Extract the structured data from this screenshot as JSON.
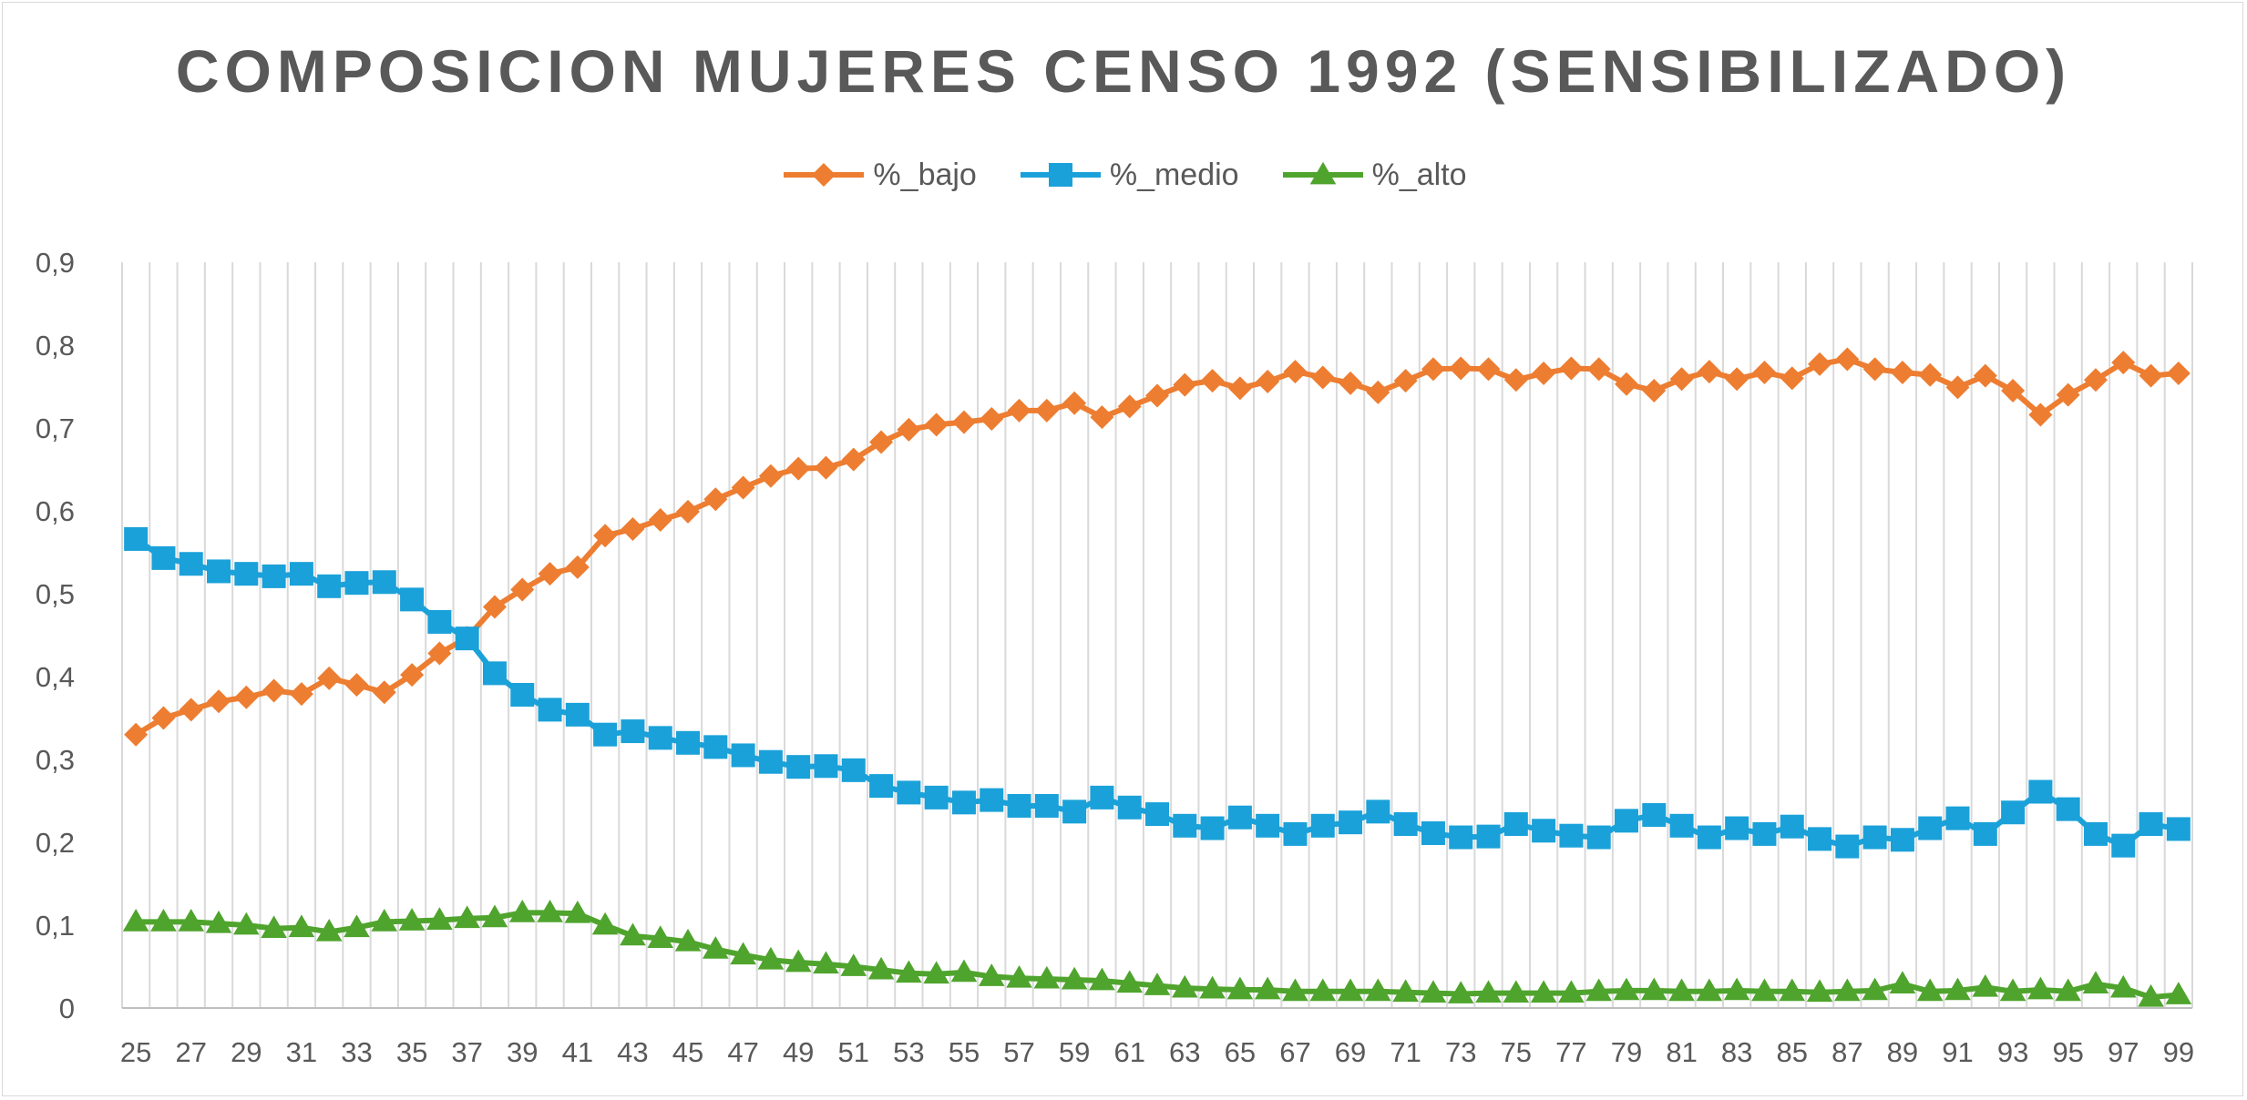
{
  "chart_data": {
    "type": "line",
    "title": "COMPOSICION MUJERES CENSO 1992 (SENSIBILIZADO)",
    "xlabel": "",
    "ylabel": "",
    "x": [
      25,
      26,
      27,
      28,
      29,
      30,
      31,
      32,
      33,
      34,
      35,
      36,
      37,
      38,
      39,
      40,
      41,
      42,
      43,
      44,
      45,
      46,
      47,
      48,
      49,
      50,
      51,
      52,
      53,
      54,
      55,
      56,
      57,
      58,
      59,
      60,
      61,
      62,
      63,
      64,
      65,
      66,
      67,
      68,
      69,
      70,
      71,
      72,
      73,
      74,
      75,
      76,
      77,
      78,
      79,
      80,
      81,
      82,
      83,
      84,
      85,
      86,
      87,
      88,
      89,
      90,
      91,
      92,
      93,
      94,
      95,
      96,
      97,
      98,
      99
    ],
    "x_tick_labels": [
      "25",
      "27",
      "29",
      "31",
      "33",
      "35",
      "37",
      "39",
      "41",
      "43",
      "45",
      "47",
      "49",
      "51",
      "53",
      "55",
      "57",
      "59",
      "61",
      "63",
      "65",
      "67",
      "69",
      "71",
      "73",
      "75",
      "77",
      "79",
      "81",
      "83",
      "85",
      "87",
      "89",
      "91",
      "93",
      "95",
      "97",
      "99"
    ],
    "y_tick_labels": [
      "0",
      "0,1",
      "0,2",
      "0,3",
      "0,4",
      "0,5",
      "0,6",
      "0,7",
      "0,8",
      "0,9"
    ],
    "ylim": [
      0,
      0.9
    ],
    "grid": "vertical",
    "legend_position": "top",
    "series": [
      {
        "name": "%_bajo",
        "color": "#ED7D31",
        "marker": "diamond",
        "values": [
          0.33,
          0.35,
          0.36,
          0.37,
          0.375,
          0.383,
          0.379,
          0.398,
          0.39,
          0.381,
          0.402,
          0.428,
          0.447,
          0.484,
          0.505,
          0.524,
          0.532,
          0.57,
          0.578,
          0.589,
          0.599,
          0.614,
          0.628,
          0.642,
          0.651,
          0.652,
          0.662,
          0.683,
          0.698,
          0.704,
          0.707,
          0.711,
          0.721,
          0.721,
          0.73,
          0.713,
          0.726,
          0.739,
          0.752,
          0.757,
          0.748,
          0.756,
          0.768,
          0.761,
          0.754,
          0.743,
          0.757,
          0.771,
          0.772,
          0.771,
          0.758,
          0.766,
          0.772,
          0.771,
          0.753,
          0.745,
          0.759,
          0.768,
          0.759,
          0.767,
          0.76,
          0.777,
          0.783,
          0.771,
          0.767,
          0.764,
          0.749,
          0.763,
          0.745,
          0.716,
          0.74,
          0.758,
          0.779,
          0.763,
          0.766
        ]
      },
      {
        "name": "%_medio",
        "color": "#1AA1D9",
        "marker": "square",
        "values": [
          0.566,
          0.543,
          0.536,
          0.527,
          0.524,
          0.521,
          0.524,
          0.509,
          0.513,
          0.514,
          0.493,
          0.466,
          0.446,
          0.404,
          0.378,
          0.36,
          0.354,
          0.33,
          0.334,
          0.326,
          0.32,
          0.315,
          0.305,
          0.297,
          0.291,
          0.292,
          0.287,
          0.268,
          0.26,
          0.254,
          0.248,
          0.251,
          0.244,
          0.244,
          0.237,
          0.254,
          0.242,
          0.234,
          0.22,
          0.217,
          0.23,
          0.22,
          0.21,
          0.22,
          0.224,
          0.237,
          0.222,
          0.211,
          0.206,
          0.207,
          0.222,
          0.214,
          0.208,
          0.206,
          0.226,
          0.233,
          0.22,
          0.206,
          0.217,
          0.21,
          0.219,
          0.204,
          0.195,
          0.206,
          0.203,
          0.217,
          0.229,
          0.21,
          0.236,
          0.261,
          0.24,
          0.21,
          0.196,
          0.222,
          0.216
        ]
      },
      {
        "name": "%_alto",
        "color": "#4FA42D",
        "marker": "triangle",
        "values": [
          0.104,
          0.104,
          0.104,
          0.102,
          0.1,
          0.096,
          0.097,
          0.092,
          0.097,
          0.104,
          0.105,
          0.106,
          0.108,
          0.109,
          0.115,
          0.115,
          0.114,
          0.1,
          0.087,
          0.084,
          0.08,
          0.071,
          0.064,
          0.058,
          0.055,
          0.053,
          0.05,
          0.046,
          0.042,
          0.041,
          0.043,
          0.038,
          0.036,
          0.035,
          0.034,
          0.033,
          0.03,
          0.027,
          0.024,
          0.023,
          0.022,
          0.022,
          0.02,
          0.02,
          0.02,
          0.02,
          0.019,
          0.018,
          0.017,
          0.018,
          0.018,
          0.018,
          0.018,
          0.02,
          0.021,
          0.021,
          0.02,
          0.02,
          0.021,
          0.02,
          0.02,
          0.019,
          0.02,
          0.021,
          0.029,
          0.02,
          0.021,
          0.025,
          0.02,
          0.022,
          0.02,
          0.029,
          0.024,
          0.013,
          0.016
        ]
      }
    ]
  }
}
